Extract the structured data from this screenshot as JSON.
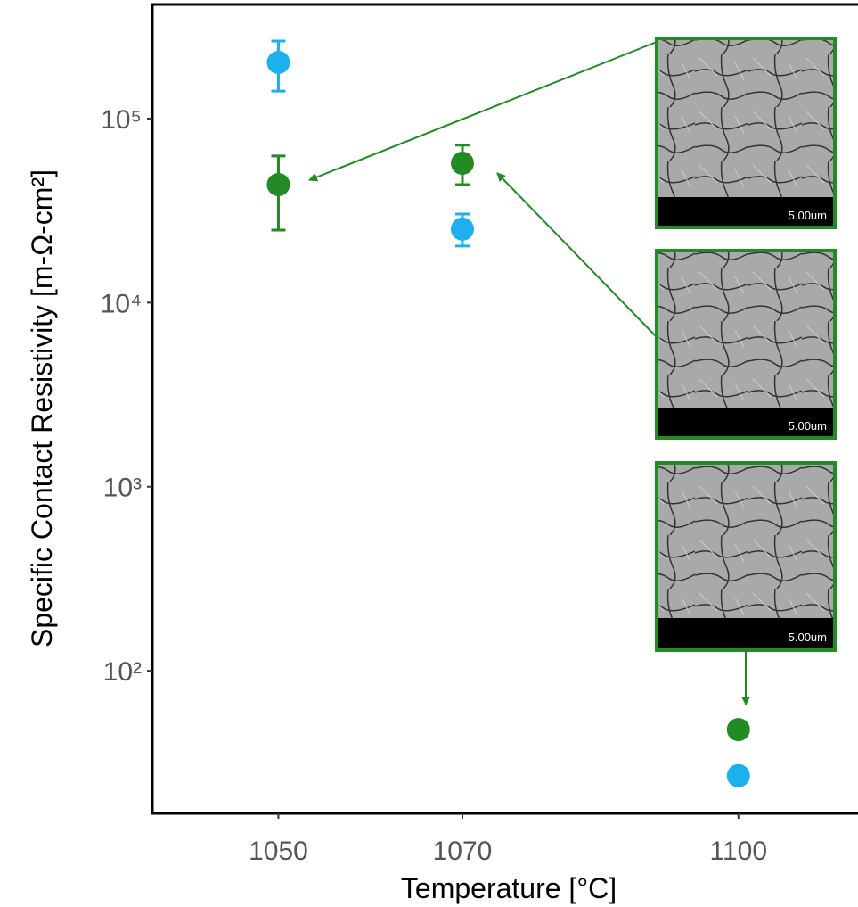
{
  "chart_data": {
    "type": "scatter",
    "xlabel": "Temperature [°C]",
    "ylabel": "Specific Contact Resistivity [m-Ω-cm²]",
    "x": [
      1050,
      1070,
      1100
    ],
    "series": [
      {
        "color": "#1cb1ec",
        "values": [
          202000,
          25100,
          26.9
        ],
        "lower": [
          141000,
          20300,
          null
        ],
        "upper": [
          264000,
          30300,
          null
        ]
      },
      {
        "color": "#238b23",
        "values": [
          43800,
          57200,
          47.9
        ],
        "lower": [
          24800,
          43800,
          null
        ],
        "upper": [
          62700,
          71700,
          null
        ]
      }
    ],
    "xlim": [
      1036.3,
      1113
    ],
    "ylim": [
      16.8,
      417000
    ],
    "log_y": true,
    "xticks": [
      1050,
      1070,
      1100
    ],
    "yticks": [
      {
        "value": 100,
        "label": "10²"
      },
      {
        "value": 1000,
        "label": "10³"
      },
      {
        "value": 10000,
        "label": "10⁴"
      },
      {
        "value": 100000,
        "label": "10⁵"
      }
    ]
  },
  "insets": [
    {
      "scale_label": "5.00um"
    },
    {
      "scale_label": "5.00um"
    },
    {
      "scale_label": "5.00um"
    }
  ]
}
